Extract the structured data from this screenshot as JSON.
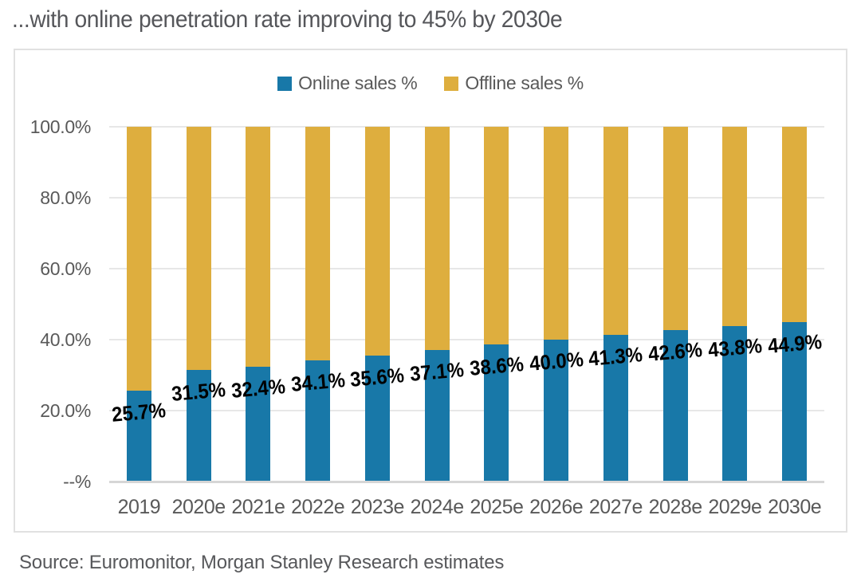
{
  "title": "...with online penetration rate improving to 45% by 2030e",
  "source": "Source: Euromonitor, Morgan Stanley Research estimates",
  "legend": [
    {
      "label": "Online sales %",
      "color": "#1878A8"
    },
    {
      "label": "Offline sales %",
      "color": "#DEAE3E"
    }
  ],
  "chart_data": {
    "type": "bar",
    "stacked": true,
    "title": "...with online penetration rate improving to 45% by 2030e",
    "categories": [
      "2019",
      "2020e",
      "2021e",
      "2022e",
      "2023e",
      "2024e",
      "2025e",
      "2026e",
      "2027e",
      "2028e",
      "2029e",
      "2030e"
    ],
    "series": [
      {
        "name": "Online sales %",
        "color": "#1878A8",
        "values": [
          25.7,
          31.5,
          32.4,
          34.1,
          35.6,
          37.1,
          38.6,
          40.0,
          41.3,
          42.6,
          43.8,
          44.9
        ]
      },
      {
        "name": "Offline sales %",
        "color": "#DEAE3E",
        "values": [
          74.3,
          68.5,
          67.6,
          65.9,
          64.4,
          62.9,
          61.4,
          60.0,
          58.7,
          57.4,
          56.2,
          55.1
        ]
      }
    ],
    "data_labels": [
      "25.7%",
      "31.5%",
      "32.4%",
      "34.1%",
      "35.6%",
      "37.1%",
      "38.6%",
      "40.0%",
      "41.3%",
      "42.6%",
      "43.8%",
      "44.9%"
    ],
    "y_ticks": [
      "100.0%",
      "80.0%",
      "60.0%",
      "40.0%",
      "20.0%",
      "--%"
    ],
    "ylim": [
      0,
      100
    ],
    "grid": true,
    "legend_position": "top"
  }
}
